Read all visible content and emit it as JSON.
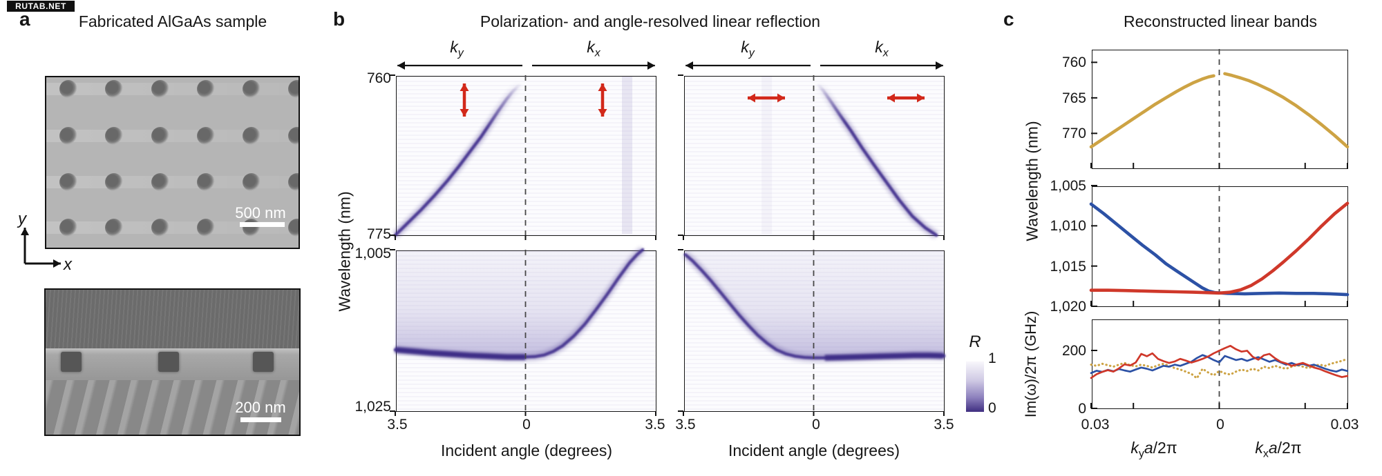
{
  "watermark": "RUTAB.NET",
  "colors": {
    "band_purple": "#45338f",
    "haze_purple": "#b5aed6",
    "red": "#cf382a",
    "blue": "#2c51a5",
    "yellow": "#cda344",
    "arrow_red": "#d2281a",
    "dash_gray": "#474747"
  },
  "panel_a": {
    "label": "a",
    "title": "Fabricated AlGaAs sample",
    "scale_bar_top": "500 nm",
    "scale_bar_bottom": "200 nm",
    "axis": {
      "x": "x",
      "y": "y"
    }
  },
  "panel_b": {
    "label": "b",
    "title": "Polarization- and angle-resolved linear reflection",
    "ylabel": "Wavelength (nm)",
    "xlabel": "Incident angle (degrees)",
    "k": {
      "ky": {
        "base": "k",
        "sub": "y"
      },
      "kx": {
        "base": "k",
        "sub": "x"
      }
    },
    "upper_yticks": [
      "760",
      "775"
    ],
    "lower_yticks": [
      "1,005",
      "1,025"
    ],
    "xticks": [
      "3.5",
      "0",
      "3.5"
    ]
  },
  "colorbar": {
    "label": "R",
    "tick_top": "1",
    "tick_bottom": "0"
  },
  "panel_c": {
    "label": "c",
    "title": "Reconstructed linear bands",
    "ylabel_top": "Wavelength (nm)",
    "ylabel_bottom": "Im(ω)/2π (GHz)",
    "plot1_yticks": [
      "760",
      "765",
      "770"
    ],
    "plot2_yticks": [
      "1,005",
      "1,010",
      "1,015",
      "1,020"
    ],
    "plot3_yticks": [
      "200",
      "0"
    ],
    "xticks": [
      "0.03",
      "0",
      "0.03"
    ],
    "ky_label": {
      "base": "k",
      "sub": "y",
      "var2": "a",
      "rest": "/2π"
    },
    "kx_label": {
      "base": "k",
      "sub": "x",
      "var2": "a",
      "rest": "/2π"
    }
  },
  "chart_data": [
    {
      "id": "b_upper_ypol",
      "type": "heatmap",
      "polarization": "y-polarized (vertical red arrows)",
      "xlabel": "Incident angle (degrees)",
      "x_halves": [
        "ky: 3.5 to 0",
        "kx: 0 to 3.5"
      ],
      "ylabel": "Wavelength (nm)",
      "y_range": [
        760,
        775
      ],
      "colorbar_range": [
        0,
        1
      ],
      "bands": {
        "ky": [
          [
            3.5,
            775.0
          ],
          [
            3.15,
            773.8
          ],
          [
            2.8,
            772.6
          ],
          [
            2.45,
            771.3
          ],
          [
            2.1,
            769.9
          ],
          [
            1.78,
            768.5
          ],
          [
            1.48,
            767.1
          ],
          [
            1.2,
            765.8
          ],
          [
            0.95,
            764.5
          ],
          [
            0.72,
            763.3
          ],
          [
            0.52,
            762.3
          ],
          [
            0.36,
            761.6
          ],
          [
            0.22,
            761.1
          ],
          [
            0.12,
            760.8
          ]
        ],
        "kx": []
      }
    },
    {
      "id": "b_upper_xpol",
      "type": "heatmap",
      "polarization": "x-polarized (horizontal red arrows)",
      "xlabel": "Incident angle (degrees)",
      "x_halves": [
        "ky: 3.5 to 0",
        "kx: 0 to 3.5"
      ],
      "ylabel": "Wavelength (nm)",
      "y_range": [
        760,
        775
      ],
      "colorbar_range": [
        0,
        1
      ],
      "bands": {
        "ky": [],
        "kx": [
          [
            0.1,
            760.8
          ],
          [
            0.25,
            761.4
          ],
          [
            0.45,
            762.4
          ],
          [
            0.7,
            763.7
          ],
          [
            1.0,
            765.2
          ],
          [
            1.3,
            766.8
          ],
          [
            1.62,
            768.4
          ],
          [
            1.95,
            770.0
          ],
          [
            2.3,
            771.7
          ],
          [
            2.65,
            773.2
          ],
          [
            3.0,
            774.3
          ],
          [
            3.3,
            775.0
          ]
        ]
      }
    },
    {
      "id": "b_lower_ypol",
      "type": "heatmap",
      "polarization": "y-polarized",
      "xlabel": "Incident angle (degrees)",
      "ylabel": "Wavelength (nm)",
      "y_range": [
        1005,
        1025
      ],
      "colorbar_range": [
        0,
        1
      ],
      "bands": {
        "ky": [
          [
            3.5,
            1017.4
          ],
          [
            3.0,
            1017.6
          ],
          [
            2.5,
            1017.8
          ],
          [
            2.0,
            1017.95
          ],
          [
            1.5,
            1018.1
          ],
          [
            1.0,
            1018.2
          ],
          [
            0.5,
            1018.3
          ],
          [
            0.15,
            1018.3
          ],
          [
            0.0,
            1018.3
          ]
        ],
        "kx": [
          [
            0.25,
            1018.25
          ],
          [
            0.5,
            1018.05
          ],
          [
            0.75,
            1017.6
          ],
          [
            1.0,
            1016.9
          ],
          [
            1.3,
            1015.7
          ],
          [
            1.6,
            1014.2
          ],
          [
            1.9,
            1012.4
          ],
          [
            2.2,
            1010.5
          ],
          [
            2.5,
            1008.5
          ],
          [
            2.8,
            1006.6
          ],
          [
            3.0,
            1005.6
          ],
          [
            3.15,
            1005.0
          ]
        ]
      }
    },
    {
      "id": "b_lower_xpol",
      "type": "heatmap",
      "polarization": "x-polarized",
      "xlabel": "Incident angle (degrees)",
      "ylabel": "Wavelength (nm)",
      "y_range": [
        1005,
        1025
      ],
      "colorbar_range": [
        0,
        1
      ],
      "bands": {
        "ky": [
          [
            3.45,
            1005.6
          ],
          [
            3.25,
            1006.4
          ],
          [
            3.0,
            1007.6
          ],
          [
            2.75,
            1008.9
          ],
          [
            2.5,
            1010.3
          ],
          [
            2.25,
            1011.7
          ],
          [
            2.0,
            1013.1
          ],
          [
            1.75,
            1014.4
          ],
          [
            1.5,
            1015.6
          ],
          [
            1.25,
            1016.6
          ],
          [
            1.0,
            1017.4
          ],
          [
            0.75,
            1017.9
          ],
          [
            0.5,
            1018.2
          ],
          [
            0.25,
            1018.35
          ],
          [
            0.0,
            1018.4
          ]
        ],
        "kx": [
          [
            0.3,
            1018.4
          ],
          [
            0.7,
            1018.35
          ],
          [
            1.1,
            1018.3
          ],
          [
            1.5,
            1018.25
          ],
          [
            1.9,
            1018.2
          ],
          [
            2.3,
            1018.15
          ],
          [
            2.7,
            1018.1
          ],
          [
            3.1,
            1018.1
          ],
          [
            3.5,
            1018.15
          ]
        ]
      }
    },
    {
      "id": "c_top",
      "type": "line",
      "title": "Reconstructed linear bands — upper band",
      "x_range": [
        -0.03,
        0.03
      ],
      "y_range_nm": [
        758.1,
        774.9
      ],
      "yticks": [
        760,
        765,
        770
      ],
      "series": [
        {
          "name": "760-nm band",
          "color": "yellow",
          "segments": [
            [
              [
                -0.03,
                771.9
              ],
              [
                -0.0275,
                770.9
              ],
              [
                -0.025,
                769.9
              ],
              [
                -0.0225,
                768.9
              ],
              [
                -0.02,
                767.9
              ],
              [
                -0.0175,
                766.9
              ],
              [
                -0.015,
                765.9
              ],
              [
                -0.0125,
                765.0
              ],
              [
                -0.01,
                764.1
              ],
              [
                -0.008,
                763.45
              ],
              [
                -0.006,
                762.85
              ],
              [
                -0.004,
                762.35
              ],
              [
                -0.0025,
                762.05
              ],
              [
                -0.0013,
                761.9
              ]
            ],
            [
              [
                0.0013,
                761.6
              ],
              [
                0.003,
                761.85
              ],
              [
                0.005,
                762.2
              ],
              [
                0.007,
                762.6
              ],
              [
                0.009,
                763.1
              ],
              [
                0.012,
                763.95
              ],
              [
                0.015,
                764.95
              ],
              [
                0.018,
                766.1
              ],
              [
                0.021,
                767.4
              ],
              [
                0.024,
                768.8
              ],
              [
                0.027,
                770.3
              ],
              [
                0.03,
                771.9
              ]
            ]
          ]
        }
      ]
    },
    {
      "id": "c_middle",
      "type": "line",
      "title": "Reconstructed linear bands — 1,018-nm bands",
      "x_range": [
        -0.03,
        0.03
      ],
      "y_range_nm": [
        1005,
        1020
      ],
      "yticks": [
        1005,
        1010,
        1015,
        1020
      ],
      "series": [
        {
          "name": "band dispersive along ky",
          "color": "blue",
          "points": [
            [
              -0.03,
              1007.3
            ],
            [
              -0.027,
              1008.5
            ],
            [
              -0.024,
              1009.8
            ],
            [
              -0.021,
              1011.1
            ],
            [
              -0.018,
              1012.4
            ],
            [
              -0.015,
              1013.6
            ],
            [
              -0.0125,
              1014.7
            ],
            [
              -0.01,
              1015.6
            ],
            [
              -0.008,
              1016.3
            ],
            [
              -0.006,
              1017.0
            ],
            [
              -0.004,
              1017.7
            ],
            [
              -0.0025,
              1018.1
            ],
            [
              -0.001,
              1018.3
            ],
            [
              0.002,
              1018.4
            ],
            [
              0.006,
              1018.45
            ],
            [
              0.01,
              1018.4
            ],
            [
              0.014,
              1018.35
            ],
            [
              0.018,
              1018.4
            ],
            [
              0.022,
              1018.4
            ],
            [
              0.026,
              1018.45
            ],
            [
              0.03,
              1018.55
            ]
          ]
        },
        {
          "name": "band dispersive along kx",
          "color": "red",
          "points": [
            [
              -0.03,
              1018.0
            ],
            [
              -0.026,
              1018.0
            ],
            [
              -0.022,
              1018.05
            ],
            [
              -0.018,
              1018.1
            ],
            [
              -0.014,
              1018.15
            ],
            [
              -0.01,
              1018.2
            ],
            [
              -0.006,
              1018.25
            ],
            [
              -0.003,
              1018.3
            ],
            [
              0.0,
              1018.35
            ],
            [
              0.0025,
              1018.25
            ],
            [
              0.005,
              1017.95
            ],
            [
              0.0075,
              1017.4
            ],
            [
              0.01,
              1016.6
            ],
            [
              0.0125,
              1015.6
            ],
            [
              0.015,
              1014.5
            ],
            [
              0.018,
              1013.1
            ],
            [
              0.021,
              1011.6
            ],
            [
              0.024,
              1010.0
            ],
            [
              0.027,
              1008.5
            ],
            [
              0.03,
              1007.2
            ]
          ]
        }
      ]
    },
    {
      "id": "c_bottom",
      "type": "line",
      "title": "Linewidths Im(ω)/2π (GHz)",
      "x_range": [
        -0.03,
        0.03
      ],
      "y_range_ghz": [
        0,
        309
      ],
      "yticks": [
        0,
        200
      ],
      "series": [
        {
          "name": "yellow band linewidth",
          "color": "yellow",
          "style": "dotted",
          "values": [
            151,
            147,
            154,
            149,
            144,
            151,
            157,
            149,
            145,
            151,
            147,
            141,
            149,
            154,
            147,
            139,
            134,
            127,
            119,
            104,
            137,
            124,
            114,
            129,
            121,
            117,
            127,
            134,
            129,
            137,
            131,
            144,
            139,
            147,
            141,
            137,
            144,
            149,
            144,
            139,
            147,
            151,
            147,
            154,
            159,
            164,
            171
          ]
        },
        {
          "name": "blue band linewidth",
          "color": "blue",
          "style": "solid",
          "values": [
            122,
            130,
            126,
            133,
            128,
            136,
            131,
            127,
            134,
            141,
            137,
            131,
            139,
            147,
            144,
            151,
            147,
            154,
            161,
            174,
            184,
            177,
            167,
            159,
            181,
            174,
            167,
            171,
            164,
            171,
            177,
            169,
            161,
            167,
            159,
            151,
            157,
            149,
            154,
            147,
            151,
            144,
            137,
            131,
            127,
            134,
            129
          ]
        },
        {
          "name": "red band linewidth",
          "color": "red",
          "style": "solid",
          "values": [
            105,
            118,
            126,
            132,
            127,
            138,
            152,
            148,
            158,
            188,
            180,
            190,
            171,
            163,
            157,
            162,
            171,
            165,
            158,
            164,
            171,
            179,
            190,
            199,
            208,
            216,
            204,
            196,
            199,
            178,
            168,
            183,
            188,
            173,
            161,
            155,
            147,
            152,
            157,
            149,
            141,
            136,
            128,
            121,
            114,
            108,
            112
          ]
        }
      ]
    }
  ]
}
